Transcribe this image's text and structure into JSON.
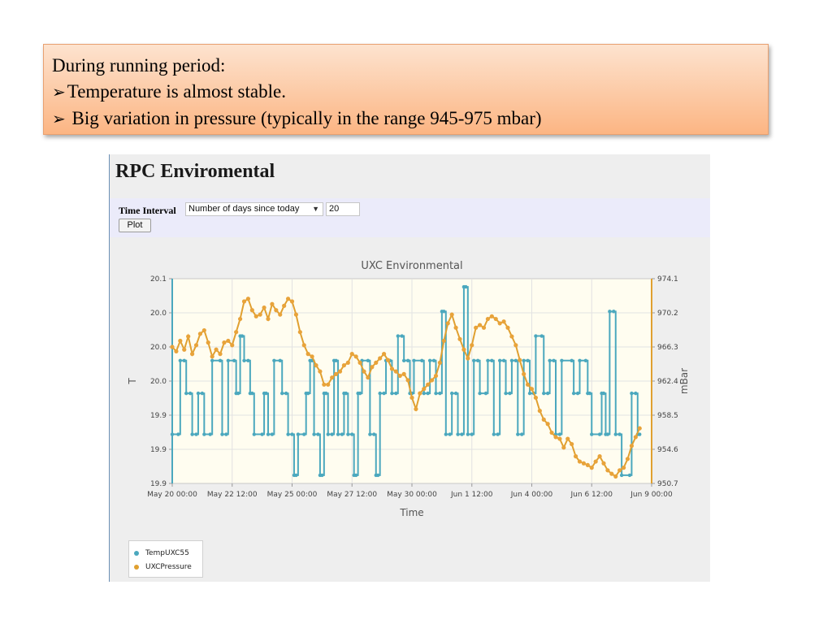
{
  "note": {
    "line1": "During running period:",
    "bullet_glyph": "➢",
    "line2": "Temperature is almost stable.",
    "line3": " Big variation in pressure (typically in the range 945-975 mbar)"
  },
  "app": {
    "title": "RPC Enviromental",
    "form": {
      "time_interval_label": "Time Interval",
      "interval_select_value": "Number of days since today",
      "days_value": "20",
      "plot_label": "Plot"
    }
  },
  "colors": {
    "temp_series": "#4ba8be",
    "pressure_series": "#e0a030",
    "pressure_marker": "#e8a33a",
    "plot_background": "#fffdf0",
    "left_axis": "#4ba8be",
    "right_axis": "#e0a030"
  },
  "chart_data": {
    "type": "line",
    "title": "UXC Environmental",
    "xlabel": "Time",
    "ylabel_left": "T",
    "ylabel_right": "mBar",
    "x_ticks": [
      "May 20 00:00",
      "May 22 12:00",
      "May 25 00:00",
      "May 27 12:00",
      "May 30 00:00",
      "Jun 1 12:00",
      "Jun 4 00:00",
      "Jun 6 12:00",
      "Jun 9 00:00"
    ],
    "xlim_hours": [
      0,
      480
    ],
    "y_left_ticks": [
      "20.1",
      "20.0",
      "20.0",
      "20.0",
      "19.9",
      "19.9",
      "19.9"
    ],
    "y_left_range": [
      19.85,
      20.1
    ],
    "y_right_ticks": [
      "974.1",
      "970.2",
      "966.3",
      "962.4",
      "958.5",
      "954.6",
      "950.7"
    ],
    "y_right_range": [
      950.7,
      974.1
    ],
    "grid": true,
    "legend_position": "bottom-left",
    "series": [
      {
        "name": "TempUXC55",
        "axis": "left",
        "step": true,
        "points": [
          [
            0,
            19.91
          ],
          [
            6,
            19.91
          ],
          [
            8,
            20.0
          ],
          [
            12,
            20.0
          ],
          [
            14,
            19.96
          ],
          [
            18,
            19.96
          ],
          [
            20,
            19.91
          ],
          [
            24,
            19.91
          ],
          [
            26,
            19.96
          ],
          [
            30,
            19.96
          ],
          [
            32,
            19.91
          ],
          [
            38,
            19.91
          ],
          [
            40,
            20.0
          ],
          [
            48,
            20.0
          ],
          [
            50,
            19.91
          ],
          [
            54,
            19.91
          ],
          [
            56,
            20.0
          ],
          [
            62,
            20.0
          ],
          [
            64,
            19.96
          ],
          [
            66,
            19.96
          ],
          [
            68,
            20.03
          ],
          [
            70,
            20.03
          ],
          [
            72,
            20.0
          ],
          [
            76,
            20.0
          ],
          [
            78,
            19.96
          ],
          [
            80,
            19.96
          ],
          [
            82,
            19.91
          ],
          [
            90,
            19.91
          ],
          [
            92,
            19.96
          ],
          [
            94,
            19.96
          ],
          [
            96,
            19.91
          ],
          [
            100,
            19.91
          ],
          [
            102,
            20.0
          ],
          [
            108,
            20.0
          ],
          [
            110,
            19.96
          ],
          [
            114,
            19.96
          ],
          [
            116,
            19.91
          ],
          [
            120,
            19.91
          ],
          [
            122,
            19.86
          ],
          [
            124,
            19.86
          ],
          [
            126,
            19.91
          ],
          [
            132,
            19.91
          ],
          [
            134,
            19.96
          ],
          [
            136,
            19.96
          ],
          [
            138,
            20.0
          ],
          [
            140,
            20.0
          ],
          [
            142,
            19.91
          ],
          [
            146,
            19.91
          ],
          [
            148,
            19.86
          ],
          [
            150,
            19.86
          ],
          [
            152,
            19.96
          ],
          [
            154,
            19.96
          ],
          [
            156,
            19.91
          ],
          [
            160,
            19.91
          ],
          [
            162,
            20.0
          ],
          [
            164,
            20.0
          ],
          [
            166,
            19.91
          ],
          [
            170,
            19.91
          ],
          [
            172,
            19.96
          ],
          [
            174,
            19.96
          ],
          [
            176,
            19.91
          ],
          [
            180,
            19.91
          ],
          [
            182,
            19.86
          ],
          [
            184,
            19.86
          ],
          [
            186,
            19.96
          ],
          [
            188,
            19.96
          ],
          [
            190,
            20.0
          ],
          [
            196,
            20.0
          ],
          [
            198,
            19.91
          ],
          [
            202,
            19.91
          ],
          [
            204,
            19.86
          ],
          [
            206,
            19.86
          ],
          [
            208,
            19.96
          ],
          [
            212,
            19.96
          ],
          [
            214,
            20.0
          ],
          [
            218,
            20.0
          ],
          [
            220,
            19.96
          ],
          [
            224,
            19.96
          ],
          [
            226,
            20.03
          ],
          [
            230,
            20.03
          ],
          [
            232,
            20.0
          ],
          [
            236,
            20.0
          ],
          [
            238,
            19.96
          ],
          [
            240,
            19.96
          ],
          [
            242,
            20.0
          ],
          [
            250,
            20.0
          ],
          [
            252,
            19.96
          ],
          [
            256,
            19.96
          ],
          [
            258,
            20.0
          ],
          [
            262,
            20.0
          ],
          [
            264,
            19.96
          ],
          [
            268,
            19.96
          ],
          [
            270,
            20.06
          ],
          [
            272,
            20.06
          ],
          [
            274,
            19.91
          ],
          [
            278,
            19.91
          ],
          [
            280,
            19.96
          ],
          [
            284,
            19.96
          ],
          [
            286,
            19.91
          ],
          [
            290,
            19.91
          ],
          [
            292,
            20.09
          ],
          [
            294,
            20.09
          ],
          [
            296,
            19.91
          ],
          [
            300,
            19.91
          ],
          [
            302,
            20.0
          ],
          [
            306,
            20.0
          ],
          [
            308,
            19.96
          ],
          [
            314,
            19.96
          ],
          [
            316,
            20.0
          ],
          [
            320,
            20.0
          ],
          [
            322,
            19.91
          ],
          [
            326,
            19.91
          ],
          [
            328,
            20.0
          ],
          [
            332,
            20.0
          ],
          [
            334,
            19.96
          ],
          [
            338,
            19.96
          ],
          [
            340,
            20.0
          ],
          [
            344,
            20.0
          ],
          [
            346,
            19.91
          ],
          [
            350,
            19.91
          ],
          [
            352,
            20.0
          ],
          [
            356,
            20.0
          ],
          [
            358,
            19.96
          ],
          [
            362,
            19.96
          ],
          [
            364,
            20.03
          ],
          [
            370,
            20.03
          ],
          [
            372,
            19.96
          ],
          [
            376,
            19.96
          ],
          [
            378,
            20.0
          ],
          [
            382,
            20.0
          ],
          [
            384,
            19.91
          ],
          [
            388,
            19.91
          ],
          [
            390,
            20.0
          ],
          [
            400,
            20.0
          ],
          [
            402,
            19.96
          ],
          [
            406,
            19.96
          ],
          [
            408,
            20.0
          ],
          [
            414,
            20.0
          ],
          [
            416,
            19.96
          ],
          [
            418,
            19.96
          ],
          [
            420,
            19.91
          ],
          [
            428,
            19.91
          ],
          [
            430,
            19.96
          ],
          [
            432,
            19.96
          ],
          [
            434,
            19.91
          ],
          [
            436,
            19.91
          ],
          [
            438,
            20.06
          ],
          [
            442,
            20.06
          ],
          [
            444,
            19.91
          ],
          [
            448,
            19.91
          ],
          [
            450,
            19.86
          ],
          [
            458,
            19.86
          ],
          [
            460,
            19.96
          ],
          [
            464,
            19.96
          ],
          [
            466,
            19.91
          ],
          [
            468,
            19.91
          ]
        ]
      },
      {
        "name": "UXCPressure",
        "axis": "right",
        "step": false,
        "points": [
          [
            0,
            966.3
          ],
          [
            4,
            965.8
          ],
          [
            8,
            967.0
          ],
          [
            12,
            966.0
          ],
          [
            16,
            967.5
          ],
          [
            20,
            965.5
          ],
          [
            24,
            966.5
          ],
          [
            28,
            967.8
          ],
          [
            32,
            968.2
          ],
          [
            36,
            966.8
          ],
          [
            40,
            965.2
          ],
          [
            44,
            966.0
          ],
          [
            48,
            965.5
          ],
          [
            52,
            966.8
          ],
          [
            56,
            967.0
          ],
          [
            60,
            966.5
          ],
          [
            64,
            968.0
          ],
          [
            68,
            969.5
          ],
          [
            72,
            971.5
          ],
          [
            76,
            971.8
          ],
          [
            80,
            970.5
          ],
          [
            84,
            969.8
          ],
          [
            88,
            970.0
          ],
          [
            92,
            970.8
          ],
          [
            96,
            969.5
          ],
          [
            100,
            971.2
          ],
          [
            104,
            970.5
          ],
          [
            108,
            970.0
          ],
          [
            112,
            971.0
          ],
          [
            116,
            971.8
          ],
          [
            120,
            971.5
          ],
          [
            124,
            970.0
          ],
          [
            128,
            968.0
          ],
          [
            132,
            966.5
          ],
          [
            136,
            965.5
          ],
          [
            140,
            965.2
          ],
          [
            144,
            964.2
          ],
          [
            148,
            963.5
          ],
          [
            152,
            962.0
          ],
          [
            156,
            962.0
          ],
          [
            160,
            962.8
          ],
          [
            164,
            963.2
          ],
          [
            168,
            963.5
          ],
          [
            172,
            964.2
          ],
          [
            176,
            964.5
          ],
          [
            180,
            965.5
          ],
          [
            184,
            965.2
          ],
          [
            188,
            964.5
          ],
          [
            192,
            963.5
          ],
          [
            196,
            962.8
          ],
          [
            200,
            964.0
          ],
          [
            204,
            964.5
          ],
          [
            208,
            965.0
          ],
          [
            212,
            965.5
          ],
          [
            216,
            964.8
          ],
          [
            220,
            963.8
          ],
          [
            224,
            963.5
          ],
          [
            228,
            963.0
          ],
          [
            232,
            963.2
          ],
          [
            236,
            962.5
          ],
          [
            240,
            960.5
          ],
          [
            244,
            959.2
          ],
          [
            248,
            961.0
          ],
          [
            252,
            961.5
          ],
          [
            256,
            962.0
          ],
          [
            260,
            962.5
          ],
          [
            264,
            963.0
          ],
          [
            268,
            964.5
          ],
          [
            272,
            967.0
          ],
          [
            276,
            969.0
          ],
          [
            280,
            970.0
          ],
          [
            284,
            968.5
          ],
          [
            288,
            967.2
          ],
          [
            292,
            966.0
          ],
          [
            296,
            965.0
          ],
          [
            300,
            966.5
          ],
          [
            304,
            968.5
          ],
          [
            308,
            968.8
          ],
          [
            312,
            968.5
          ],
          [
            316,
            969.5
          ],
          [
            320,
            969.8
          ],
          [
            324,
            969.5
          ],
          [
            328,
            969.0
          ],
          [
            332,
            969.2
          ],
          [
            336,
            968.5
          ],
          [
            340,
            967.5
          ],
          [
            344,
            966.5
          ],
          [
            348,
            964.8
          ],
          [
            352,
            963.2
          ],
          [
            356,
            962.0
          ],
          [
            360,
            961.5
          ],
          [
            364,
            960.5
          ],
          [
            368,
            959.0
          ],
          [
            372,
            958.0
          ],
          [
            376,
            957.5
          ],
          [
            380,
            956.5
          ],
          [
            384,
            956.0
          ],
          [
            388,
            955.8
          ],
          [
            392,
            954.8
          ],
          [
            396,
            955.8
          ],
          [
            400,
            955.2
          ],
          [
            404,
            953.8
          ],
          [
            408,
            953.2
          ],
          [
            412,
            953.0
          ],
          [
            416,
            952.8
          ],
          [
            420,
            952.5
          ],
          [
            424,
            953.2
          ],
          [
            428,
            953.8
          ],
          [
            432,
            953.0
          ],
          [
            436,
            952.2
          ],
          [
            440,
            951.8
          ],
          [
            444,
            951.5
          ],
          [
            448,
            952.2
          ],
          [
            452,
            952.5
          ],
          [
            456,
            953.5
          ],
          [
            460,
            955.0
          ],
          [
            464,
            956.0
          ],
          [
            468,
            957.0
          ]
        ]
      }
    ]
  },
  "legend": {
    "items": [
      {
        "label": "TempUXC55",
        "color": "#4ba8be"
      },
      {
        "label": "UXCPressure",
        "color": "#e0a030"
      }
    ]
  }
}
